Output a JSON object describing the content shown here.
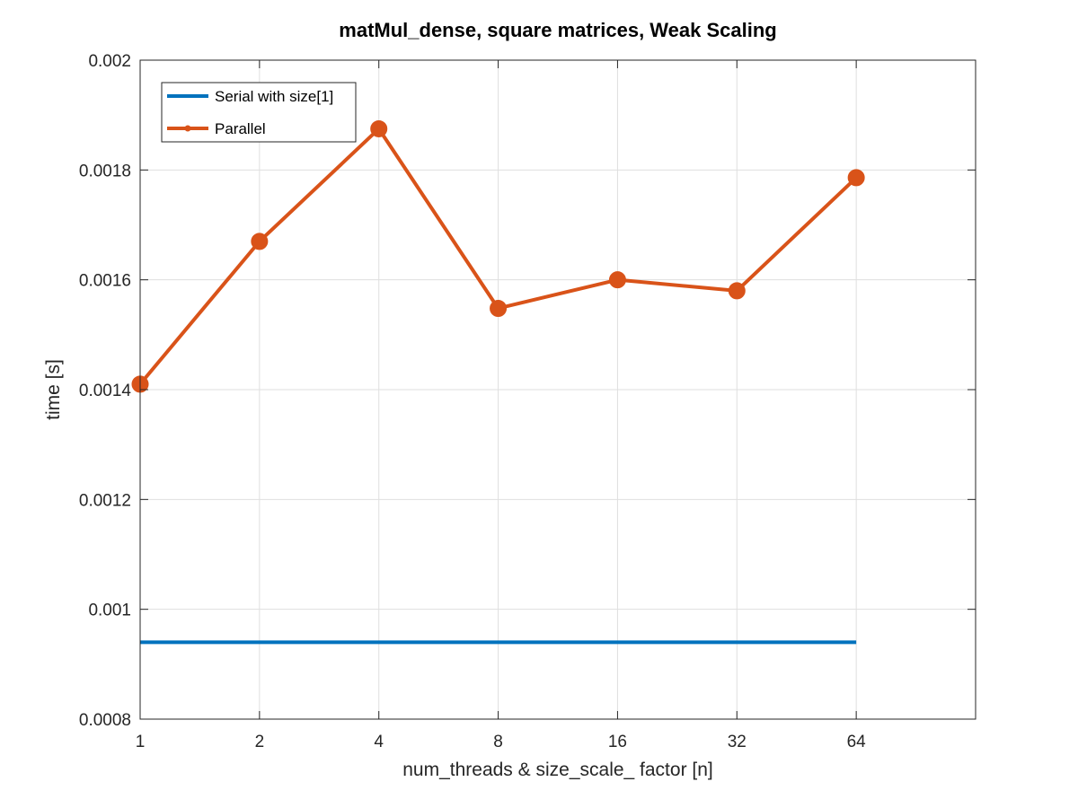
{
  "chart_data": {
    "type": "line",
    "title": "matMul_dense, square matrices, Weak Scaling",
    "xlabel": "num_threads & size_scale_ factor [n]",
    "ylabel": "time [s]",
    "x_scale": "log2",
    "x_ticks": [
      "1",
      "2",
      "4",
      "8",
      "16",
      "32",
      "64"
    ],
    "xlim": [
      1,
      128
    ],
    "ylim": [
      0.0008,
      0.002
    ],
    "y_ticks": [
      "0.0008",
      "0.001",
      "0.0012",
      "0.0014",
      "0.0016",
      "0.0018",
      "0.002"
    ],
    "grid": true,
    "legend_position": "top-left",
    "x": [
      1,
      2,
      4,
      8,
      16,
      32,
      64
    ],
    "series": [
      {
        "name": "Serial with size[1]",
        "color": "#0072BD",
        "marker": "none",
        "values": [
          0.00094,
          0.00094,
          0.00094,
          0.00094,
          0.00094,
          0.00094,
          0.00094
        ]
      },
      {
        "name": "Parallel",
        "color": "#D95319",
        "marker": "circle",
        "values": [
          0.00141,
          0.00167,
          0.001875,
          0.001548,
          0.0016,
          0.00158,
          0.001786
        ]
      }
    ]
  }
}
